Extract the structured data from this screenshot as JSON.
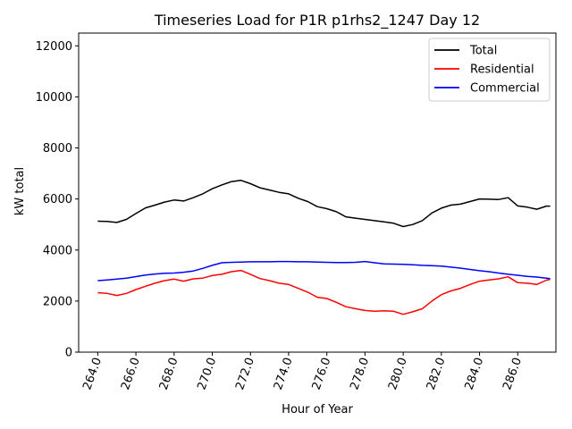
{
  "chart_data": {
    "type": "line",
    "title": "Timeseries Load for P1R p1rhs2_1247  Day 12",
    "xlabel": "Hour of Year",
    "ylabel": "kW total",
    "xlim": [
      263.0,
      288.0
    ],
    "ylim": [
      0,
      12500
    ],
    "x_ticks": [
      "264.0",
      "266.0",
      "268.0",
      "270.0",
      "272.0",
      "274.0",
      "276.0",
      "278.0",
      "280.0",
      "282.0",
      "284.0",
      "286.0"
    ],
    "x_tick_values": [
      264,
      266,
      268,
      270,
      272,
      274,
      276,
      278,
      280,
      282,
      284,
      286
    ],
    "y_ticks": [
      "0",
      "2000",
      "4000",
      "6000",
      "8000",
      "10000",
      "12000"
    ],
    "y_tick_values": [
      0,
      2000,
      4000,
      6000,
      8000,
      10000,
      12000
    ],
    "legend_position": "top-right",
    "series": [
      {
        "name": "Total",
        "color": "#000000",
        "points": [
          [
            264.0,
            5130
          ],
          [
            264.5,
            5120
          ],
          [
            265.0,
            5080
          ],
          [
            265.5,
            5200
          ],
          [
            266.0,
            5430
          ],
          [
            266.5,
            5650
          ],
          [
            267.0,
            5760
          ],
          [
            267.5,
            5880
          ],
          [
            268.0,
            5960
          ],
          [
            268.5,
            5920
          ],
          [
            269.0,
            6050
          ],
          [
            269.5,
            6200
          ],
          [
            270.0,
            6400
          ],
          [
            270.5,
            6550
          ],
          [
            271.0,
            6680
          ],
          [
            271.5,
            6730
          ],
          [
            272.0,
            6600
          ],
          [
            272.5,
            6440
          ],
          [
            273.0,
            6350
          ],
          [
            273.5,
            6260
          ],
          [
            274.0,
            6200
          ],
          [
            274.5,
            6030
          ],
          [
            275.0,
            5900
          ],
          [
            275.5,
            5700
          ],
          [
            276.0,
            5620
          ],
          [
            276.5,
            5500
          ],
          [
            277.0,
            5300
          ],
          [
            277.5,
            5250
          ],
          [
            278.0,
            5200
          ],
          [
            278.5,
            5150
          ],
          [
            279.0,
            5100
          ],
          [
            279.5,
            5050
          ],
          [
            280.0,
            4920
          ],
          [
            280.5,
            5000
          ],
          [
            281.0,
            5150
          ],
          [
            281.5,
            5450
          ],
          [
            282.0,
            5640
          ],
          [
            282.5,
            5760
          ],
          [
            283.0,
            5800
          ],
          [
            283.5,
            5900
          ],
          [
            284.0,
            6000
          ],
          [
            284.5,
            5990
          ],
          [
            285.0,
            5980
          ],
          [
            285.5,
            6050
          ],
          [
            286.0,
            5730
          ],
          [
            286.5,
            5680
          ],
          [
            287.0,
            5600
          ],
          [
            287.5,
            5720
          ],
          [
            287.7,
            5720
          ]
        ]
      },
      {
        "name": "Residential",
        "color": "#ff0000",
        "points": [
          [
            264.0,
            2330
          ],
          [
            264.5,
            2300
          ],
          [
            265.0,
            2220
          ],
          [
            265.5,
            2300
          ],
          [
            266.0,
            2450
          ],
          [
            266.5,
            2580
          ],
          [
            267.0,
            2700
          ],
          [
            267.5,
            2800
          ],
          [
            268.0,
            2860
          ],
          [
            268.5,
            2780
          ],
          [
            269.0,
            2870
          ],
          [
            269.5,
            2900
          ],
          [
            270.0,
            3000
          ],
          [
            270.5,
            3050
          ],
          [
            271.0,
            3150
          ],
          [
            271.5,
            3200
          ],
          [
            272.0,
            3050
          ],
          [
            272.5,
            2880
          ],
          [
            273.0,
            2800
          ],
          [
            273.5,
            2700
          ],
          [
            274.0,
            2650
          ],
          [
            274.5,
            2500
          ],
          [
            275.0,
            2350
          ],
          [
            275.5,
            2150
          ],
          [
            276.0,
            2100
          ],
          [
            276.5,
            1950
          ],
          [
            277.0,
            1780
          ],
          [
            277.5,
            1700
          ],
          [
            278.0,
            1630
          ],
          [
            278.5,
            1600
          ],
          [
            279.0,
            1620
          ],
          [
            279.5,
            1600
          ],
          [
            280.0,
            1480
          ],
          [
            280.5,
            1580
          ],
          [
            281.0,
            1700
          ],
          [
            281.5,
            2000
          ],
          [
            282.0,
            2250
          ],
          [
            282.5,
            2400
          ],
          [
            283.0,
            2500
          ],
          [
            283.5,
            2650
          ],
          [
            284.0,
            2780
          ],
          [
            284.5,
            2830
          ],
          [
            285.0,
            2870
          ],
          [
            285.5,
            2950
          ],
          [
            286.0,
            2720
          ],
          [
            286.5,
            2700
          ],
          [
            287.0,
            2650
          ],
          [
            287.5,
            2820
          ],
          [
            287.7,
            2850
          ]
        ]
      },
      {
        "name": "Commercial",
        "color": "#0000ff",
        "points": [
          [
            264.0,
            2800
          ],
          [
            264.5,
            2830
          ],
          [
            265.0,
            2860
          ],
          [
            265.5,
            2900
          ],
          [
            266.0,
            2960
          ],
          [
            266.5,
            3020
          ],
          [
            267.0,
            3060
          ],
          [
            267.5,
            3090
          ],
          [
            268.0,
            3100
          ],
          [
            268.5,
            3130
          ],
          [
            269.0,
            3180
          ],
          [
            269.5,
            3280
          ],
          [
            270.0,
            3400
          ],
          [
            270.5,
            3500
          ],
          [
            271.0,
            3520
          ],
          [
            271.5,
            3530
          ],
          [
            272.0,
            3540
          ],
          [
            272.5,
            3540
          ],
          [
            273.0,
            3540
          ],
          [
            273.5,
            3550
          ],
          [
            274.0,
            3550
          ],
          [
            274.5,
            3540
          ],
          [
            275.0,
            3540
          ],
          [
            275.5,
            3530
          ],
          [
            276.0,
            3520
          ],
          [
            276.5,
            3510
          ],
          [
            277.0,
            3510
          ],
          [
            277.5,
            3520
          ],
          [
            278.0,
            3550
          ],
          [
            278.5,
            3500
          ],
          [
            279.0,
            3460
          ],
          [
            279.5,
            3450
          ],
          [
            280.0,
            3440
          ],
          [
            280.5,
            3420
          ],
          [
            281.0,
            3400
          ],
          [
            281.5,
            3390
          ],
          [
            282.0,
            3370
          ],
          [
            282.5,
            3330
          ],
          [
            283.0,
            3290
          ],
          [
            283.5,
            3240
          ],
          [
            284.0,
            3190
          ],
          [
            284.5,
            3150
          ],
          [
            285.0,
            3100
          ],
          [
            285.5,
            3050
          ],
          [
            286.0,
            3010
          ],
          [
            286.5,
            2970
          ],
          [
            287.0,
            2940
          ],
          [
            287.5,
            2900
          ],
          [
            287.7,
            2880
          ]
        ]
      }
    ]
  }
}
